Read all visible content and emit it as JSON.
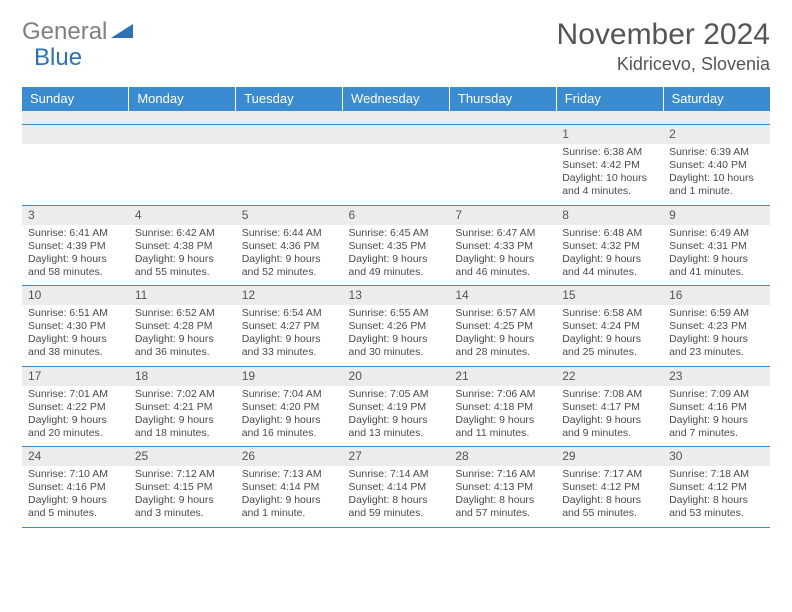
{
  "logo": {
    "gray": "General",
    "blue": "Blue"
  },
  "title": "November 2024",
  "location": "Kidricevo, Slovenia",
  "colors": {
    "header_bg": "#3b8bd0",
    "header_text": "#ffffff",
    "daynum_bg": "#ececec",
    "border": "#3b8bd0",
    "text": "#4a4a4a",
    "title_text": "#555555"
  },
  "weekdays": [
    "Sunday",
    "Monday",
    "Tuesday",
    "Wednesday",
    "Thursday",
    "Friday",
    "Saturday"
  ],
  "weeks": [
    [
      null,
      null,
      null,
      null,
      null,
      {
        "n": "1",
        "sr": "6:38 AM",
        "ss": "4:42 PM",
        "dl": "10 hours and 4 minutes."
      },
      {
        "n": "2",
        "sr": "6:39 AM",
        "ss": "4:40 PM",
        "dl": "10 hours and 1 minute."
      }
    ],
    [
      {
        "n": "3",
        "sr": "6:41 AM",
        "ss": "4:39 PM",
        "dl": "9 hours and 58 minutes."
      },
      {
        "n": "4",
        "sr": "6:42 AM",
        "ss": "4:38 PM",
        "dl": "9 hours and 55 minutes."
      },
      {
        "n": "5",
        "sr": "6:44 AM",
        "ss": "4:36 PM",
        "dl": "9 hours and 52 minutes."
      },
      {
        "n": "6",
        "sr": "6:45 AM",
        "ss": "4:35 PM",
        "dl": "9 hours and 49 minutes."
      },
      {
        "n": "7",
        "sr": "6:47 AM",
        "ss": "4:33 PM",
        "dl": "9 hours and 46 minutes."
      },
      {
        "n": "8",
        "sr": "6:48 AM",
        "ss": "4:32 PM",
        "dl": "9 hours and 44 minutes."
      },
      {
        "n": "9",
        "sr": "6:49 AM",
        "ss": "4:31 PM",
        "dl": "9 hours and 41 minutes."
      }
    ],
    [
      {
        "n": "10",
        "sr": "6:51 AM",
        "ss": "4:30 PM",
        "dl": "9 hours and 38 minutes."
      },
      {
        "n": "11",
        "sr": "6:52 AM",
        "ss": "4:28 PM",
        "dl": "9 hours and 36 minutes."
      },
      {
        "n": "12",
        "sr": "6:54 AM",
        "ss": "4:27 PM",
        "dl": "9 hours and 33 minutes."
      },
      {
        "n": "13",
        "sr": "6:55 AM",
        "ss": "4:26 PM",
        "dl": "9 hours and 30 minutes."
      },
      {
        "n": "14",
        "sr": "6:57 AM",
        "ss": "4:25 PM",
        "dl": "9 hours and 28 minutes."
      },
      {
        "n": "15",
        "sr": "6:58 AM",
        "ss": "4:24 PM",
        "dl": "9 hours and 25 minutes."
      },
      {
        "n": "16",
        "sr": "6:59 AM",
        "ss": "4:23 PM",
        "dl": "9 hours and 23 minutes."
      }
    ],
    [
      {
        "n": "17",
        "sr": "7:01 AM",
        "ss": "4:22 PM",
        "dl": "9 hours and 20 minutes."
      },
      {
        "n": "18",
        "sr": "7:02 AM",
        "ss": "4:21 PM",
        "dl": "9 hours and 18 minutes."
      },
      {
        "n": "19",
        "sr": "7:04 AM",
        "ss": "4:20 PM",
        "dl": "9 hours and 16 minutes."
      },
      {
        "n": "20",
        "sr": "7:05 AM",
        "ss": "4:19 PM",
        "dl": "9 hours and 13 minutes."
      },
      {
        "n": "21",
        "sr": "7:06 AM",
        "ss": "4:18 PM",
        "dl": "9 hours and 11 minutes."
      },
      {
        "n": "22",
        "sr": "7:08 AM",
        "ss": "4:17 PM",
        "dl": "9 hours and 9 minutes."
      },
      {
        "n": "23",
        "sr": "7:09 AM",
        "ss": "4:16 PM",
        "dl": "9 hours and 7 minutes."
      }
    ],
    [
      {
        "n": "24",
        "sr": "7:10 AM",
        "ss": "4:16 PM",
        "dl": "9 hours and 5 minutes."
      },
      {
        "n": "25",
        "sr": "7:12 AM",
        "ss": "4:15 PM",
        "dl": "9 hours and 3 minutes."
      },
      {
        "n": "26",
        "sr": "7:13 AM",
        "ss": "4:14 PM",
        "dl": "9 hours and 1 minute."
      },
      {
        "n": "27",
        "sr": "7:14 AM",
        "ss": "4:14 PM",
        "dl": "8 hours and 59 minutes."
      },
      {
        "n": "28",
        "sr": "7:16 AM",
        "ss": "4:13 PM",
        "dl": "8 hours and 57 minutes."
      },
      {
        "n": "29",
        "sr": "7:17 AM",
        "ss": "4:12 PM",
        "dl": "8 hours and 55 minutes."
      },
      {
        "n": "30",
        "sr": "7:18 AM",
        "ss": "4:12 PM",
        "dl": "8 hours and 53 minutes."
      }
    ]
  ],
  "labels": {
    "sunrise": "Sunrise: ",
    "sunset": "Sunset: ",
    "daylight": "Daylight: "
  }
}
